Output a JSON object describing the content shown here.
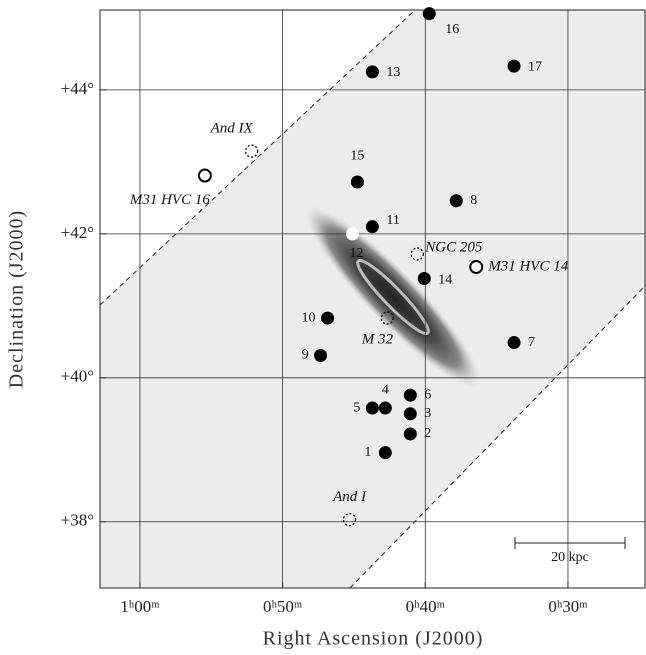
{
  "chart_data": {
    "type": "scatter",
    "x_label": "Right Ascension (J2000)",
    "y_label": "Declination (J2000)",
    "xlim": [
      62.8,
      24.6
    ],
    "ylim": [
      37.08,
      45.11
    ],
    "xticks": [
      {
        "value": 60,
        "label": "1ʰ00ᵐ"
      },
      {
        "value": 50,
        "label": "0ʰ50ᵐ"
      },
      {
        "value": 40,
        "label": "0ʰ40ᵐ"
      },
      {
        "value": 30,
        "label": "0ʰ30ᵐ"
      }
    ],
    "yticks": [
      {
        "value": 44,
        "label": "+44°"
      },
      {
        "value": 42,
        "label": "+42°"
      },
      {
        "value": 40,
        "label": "+40°"
      },
      {
        "value": 38,
        "label": "+38°"
      }
    ],
    "grid": true,
    "scale_bar_label": "20 kpc",
    "points": [
      {
        "label": "1",
        "x": 42.8,
        "y": 38.96,
        "style": "filled"
      },
      {
        "label": "2",
        "x": 41.05,
        "y": 39.22,
        "style": "filled"
      },
      {
        "label": "3",
        "x": 41.05,
        "y": 39.5,
        "style": "filled"
      },
      {
        "label": "4",
        "x": 42.8,
        "y": 39.58,
        "style": "filled"
      },
      {
        "label": "5",
        "x": 43.71,
        "y": 39.58,
        "style": "filled"
      },
      {
        "label": "6",
        "x": 41.05,
        "y": 39.76,
        "style": "filled"
      },
      {
        "label": "7",
        "x": 33.78,
        "y": 40.49,
        "style": "filled"
      },
      {
        "label": "8",
        "x": 37.83,
        "y": 42.46,
        "style": "filled"
      },
      {
        "label": "9",
        "x": 47.34,
        "y": 40.31,
        "style": "filled"
      },
      {
        "label": "10",
        "x": 46.85,
        "y": 40.83,
        "style": "filled"
      },
      {
        "label": "11",
        "x": 43.71,
        "y": 42.1,
        "style": "filled"
      },
      {
        "label": "12",
        "x": 45.1,
        "y": 42.0,
        "style": "white"
      },
      {
        "label": "13",
        "x": 43.71,
        "y": 44.25,
        "style": "filled"
      },
      {
        "label": "14",
        "x": 40.07,
        "y": 41.38,
        "style": "filled"
      },
      {
        "label": "15",
        "x": 44.76,
        "y": 42.72,
        "style": "filled"
      },
      {
        "label": "16",
        "x": 39.72,
        "y": 45.06,
        "style": "filled"
      },
      {
        "label": "17",
        "x": 33.78,
        "y": 44.33,
        "style": "filled"
      },
      {
        "label": "M31 HVC 16",
        "x": 55.45,
        "y": 42.81,
        "style": "open"
      },
      {
        "label": "M31 HVC 14",
        "x": 36.43,
        "y": 41.54,
        "style": "open"
      },
      {
        "label": "And IX",
        "x": 52.17,
        "y": 43.15,
        "style": "dashed"
      },
      {
        "label": "NGC 205",
        "x": 40.56,
        "y": 41.72,
        "style": "dashed"
      },
      {
        "label": "M 32",
        "x": 42.66,
        "y": 40.83,
        "style": "dashed"
      },
      {
        "label": "And I",
        "x": 45.31,
        "y": 38.03,
        "style": "dashed"
      }
    ]
  }
}
